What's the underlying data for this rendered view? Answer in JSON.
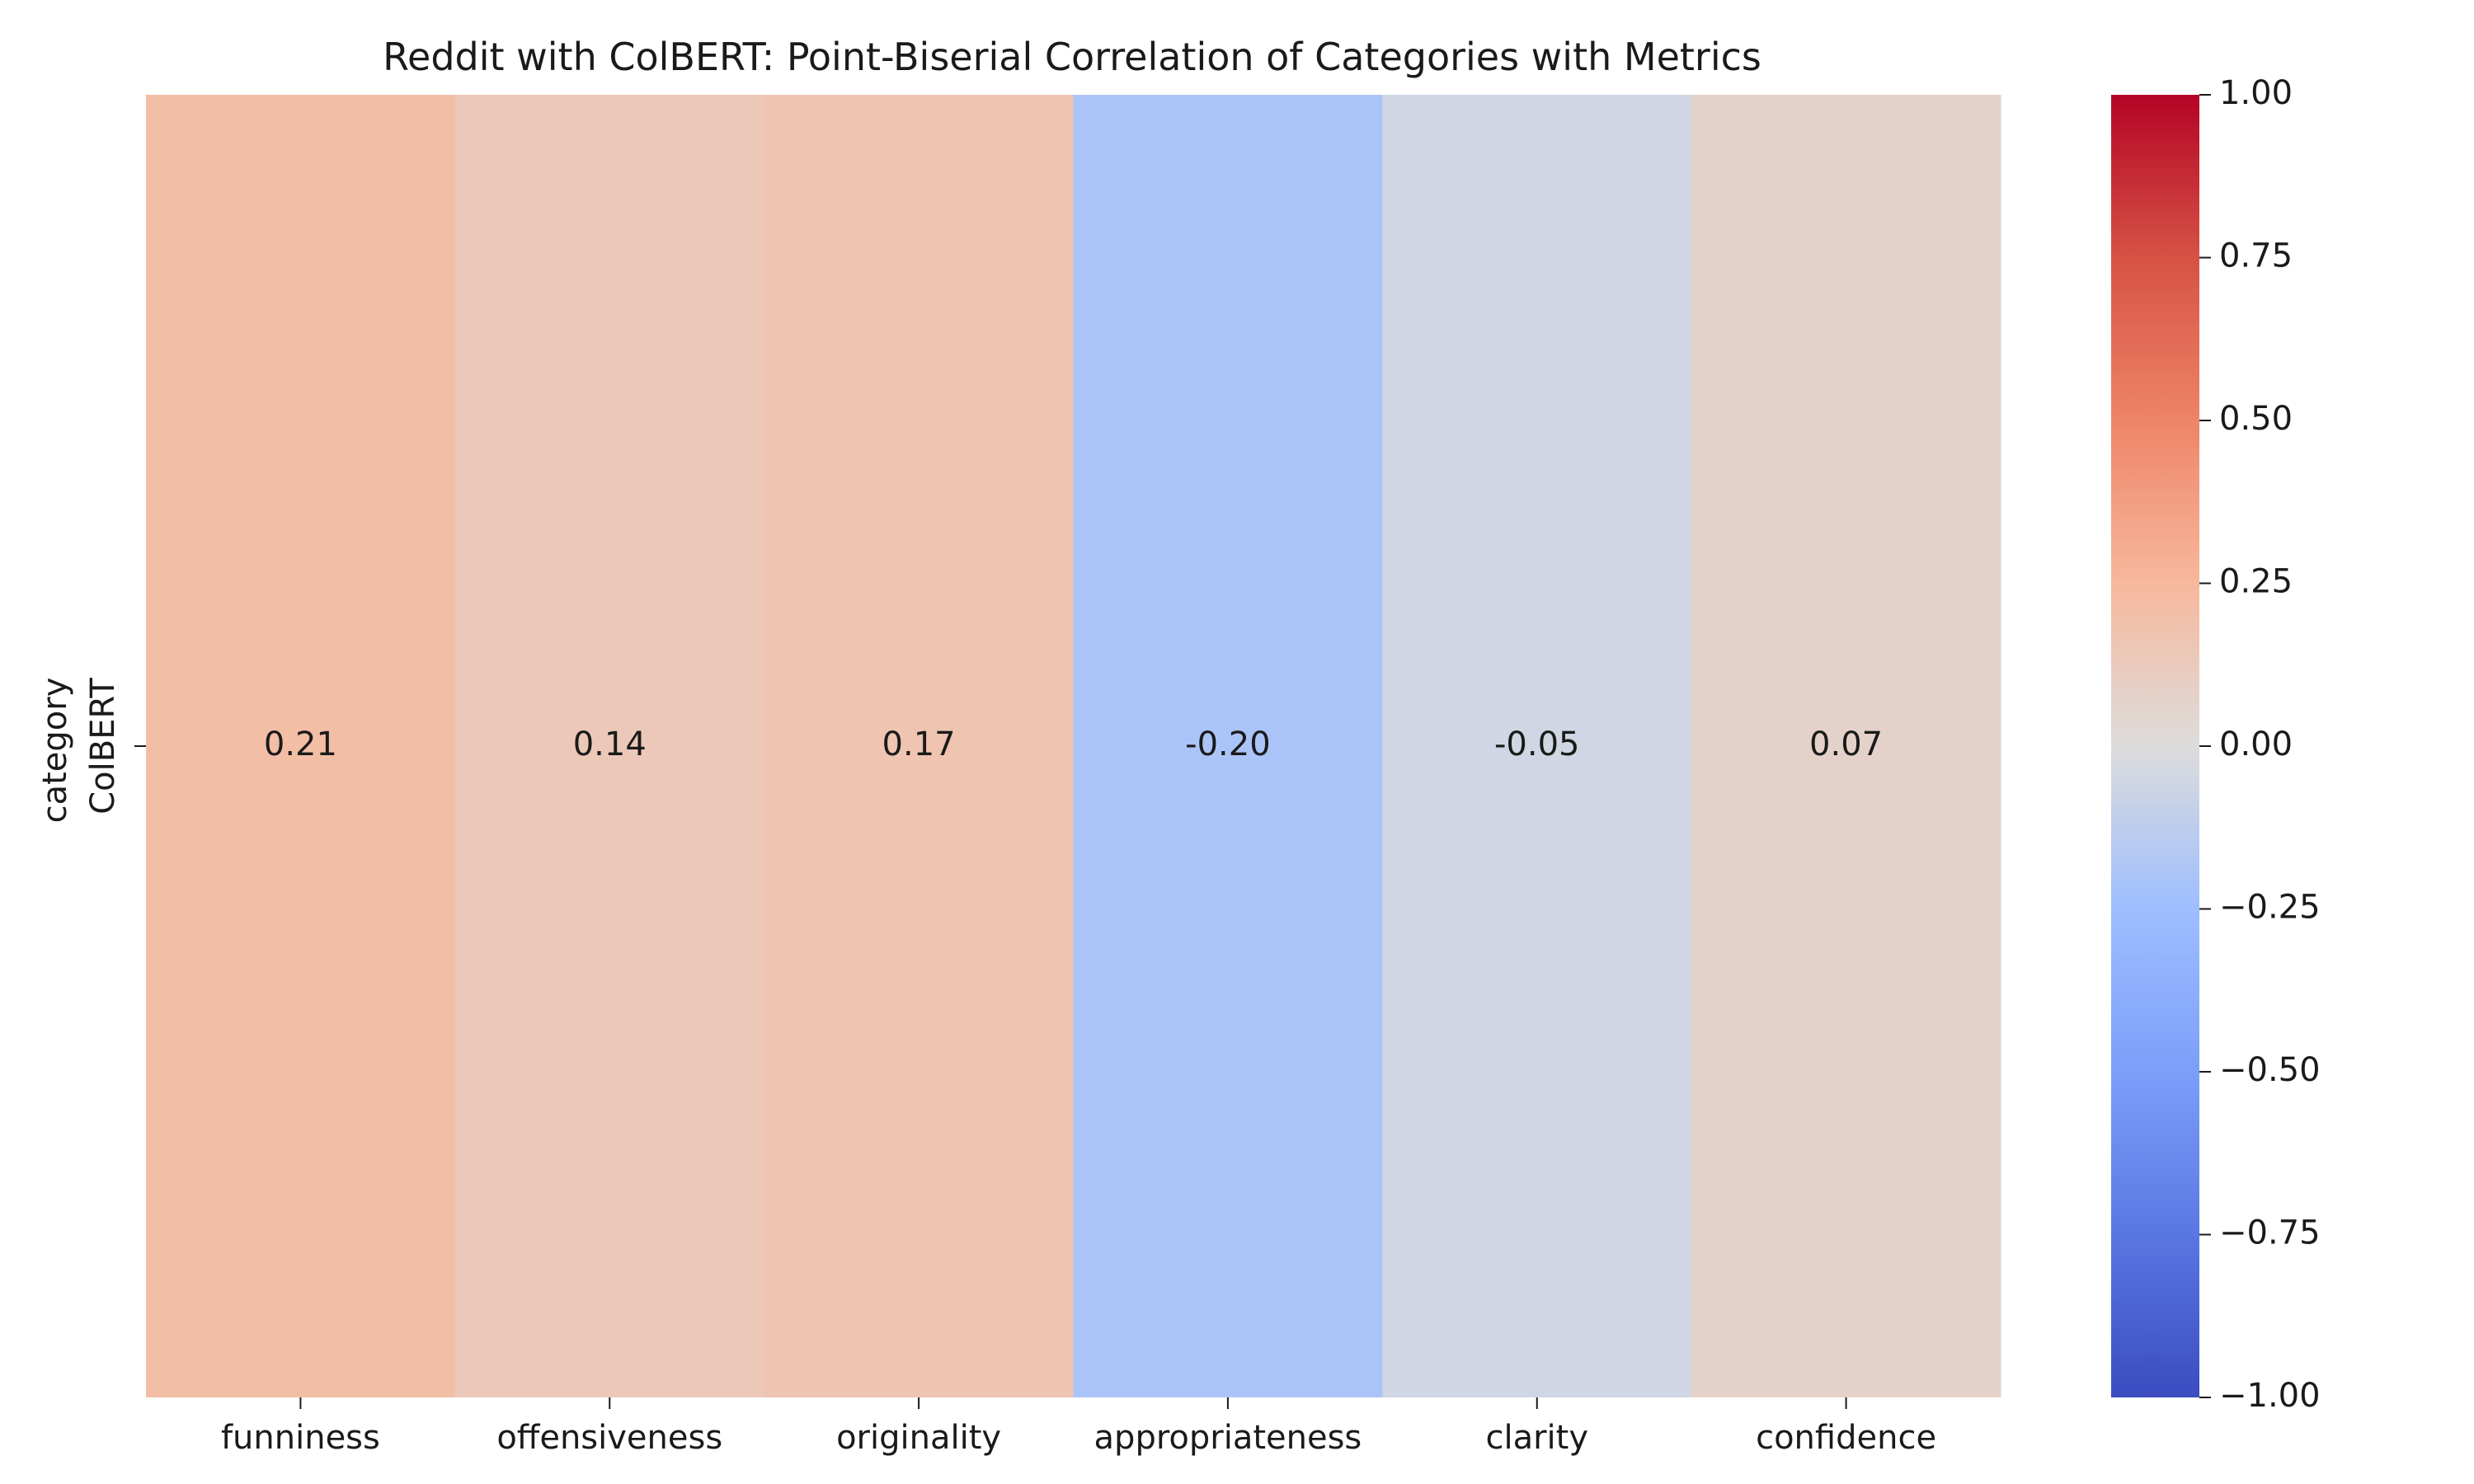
{
  "chart_data": {
    "type": "heatmap",
    "title": "Reddit with ColBERT: Point-Biserial Correlation of Categories with Metrics",
    "xlabel": "",
    "ylabel": "category",
    "rows": [
      "ColBERT"
    ],
    "columns": [
      "funniness",
      "offensiveness",
      "originality",
      "appropriateness",
      "clarity",
      "confidence"
    ],
    "values": [
      [
        0.21,
        0.14,
        0.17,
        -0.2,
        -0.05,
        0.07
      ]
    ],
    "cell_labels": [
      [
        "0.21",
        "0.14",
        "0.17",
        "-0.20",
        "-0.05",
        "0.07"
      ]
    ],
    "colormap": "coolwarm",
    "vmin": -1.0,
    "vmax": 1.0,
    "colorbar": {
      "ticks": [
        1.0,
        0.75,
        0.5,
        0.25,
        0.0,
        -0.25,
        -0.5,
        -0.75,
        -1.0
      ],
      "tick_labels": [
        "1.00",
        "0.75",
        "0.50",
        "0.25",
        "0.00",
        "−0.25",
        "−0.50",
        "−0.75",
        "−1.00"
      ]
    }
  }
}
